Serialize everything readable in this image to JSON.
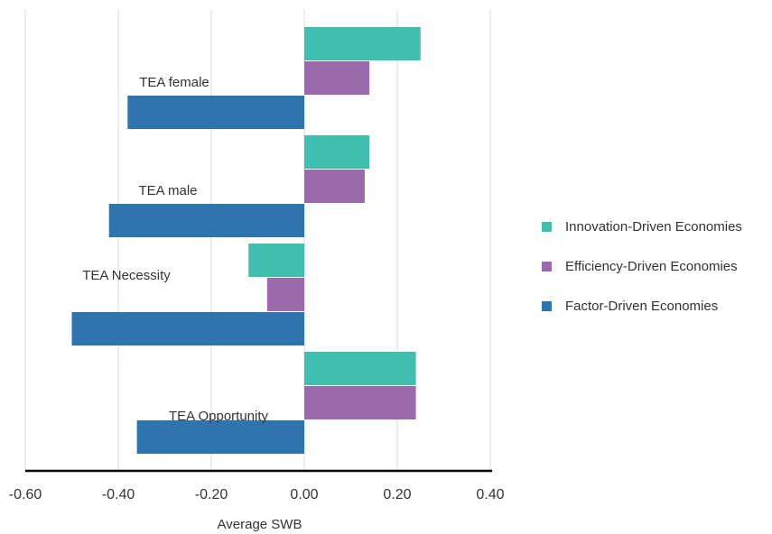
{
  "chart_data": {
    "type": "bar",
    "orientation": "horizontal",
    "title": "",
    "xlabel": "Average SWB",
    "ylabel": "",
    "xlim": [
      -0.6,
      0.4
    ],
    "x_ticks": [
      -0.6,
      -0.4,
      -0.2,
      0.0,
      0.2,
      0.4
    ],
    "x_tick_labels": [
      "-0.60",
      "-0.40",
      "-0.20",
      "0.00",
      "0.20",
      "0.40"
    ],
    "grid": "vertical",
    "legend_position": "right",
    "categories": [
      "TEA female",
      "TEA male",
      "TEA Necessity",
      "TEA Opportunity"
    ],
    "series": [
      {
        "name": "Innovation-Driven Economies",
        "color": "#40bfb0",
        "values": [
          0.25,
          0.14,
          -0.12,
          0.24
        ]
      },
      {
        "name": "Efficiency-Driven Economies",
        "color": "#9b6aad",
        "values": [
          0.14,
          0.13,
          -0.08,
          0.24
        ]
      },
      {
        "name": "Factor-Driven Economies",
        "color": "#2e75b0",
        "values": [
          -0.38,
          -0.42,
          -0.5,
          -0.36
        ]
      }
    ]
  }
}
